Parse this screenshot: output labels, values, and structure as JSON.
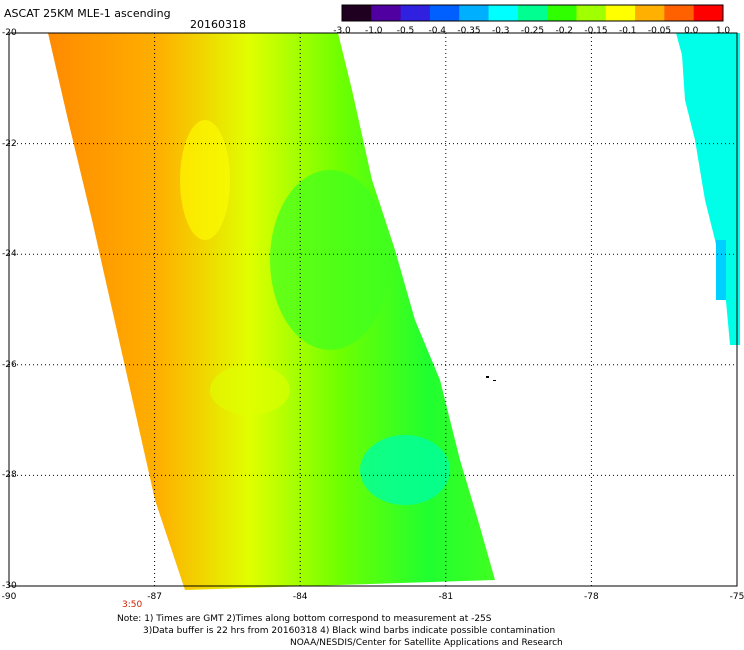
{
  "header": {
    "title": "ASCAT 25KM MLE-1 ascending",
    "date": "20160318"
  },
  "colorbar": {
    "labels": [
      "-3.0",
      "-1.0",
      "-0.5",
      "-0.4",
      "-0.35",
      "-0.3",
      "-0.25",
      "-0.2",
      "-0.15",
      "-0.1",
      "-0.05",
      "0.0",
      "1.0"
    ],
    "colors": [
      "#200020",
      "#5000a0",
      "#3020e0",
      "#0060ff",
      "#00b0ff",
      "#00ffff",
      "#00ff90",
      "#30ff00",
      "#a0ff00",
      "#ffff00",
      "#ffb000",
      "#ff6000",
      "#ff0000"
    ]
  },
  "map": {
    "latitudes": [
      "-20",
      "-22",
      "-24",
      "-26",
      "-28",
      "-30"
    ],
    "longitudes": [
      "-90",
      "-87",
      "-84",
      "-81",
      "-78",
      "-75"
    ],
    "lat_range": [
      -30,
      -20
    ],
    "lon_range": [
      -90,
      -75
    ],
    "pass_time": "3:50"
  },
  "notes": {
    "line1": "Note: 1) Times are GMT 2)Times along bottom correspond to measurement at -25S",
    "line2": "3)Data buffer is 22 hrs from 20160318 4) Black wind barbs indicate possible contamination",
    "line3": "NOAA/NESDIS/Center for Satellite Applications and Research"
  }
}
